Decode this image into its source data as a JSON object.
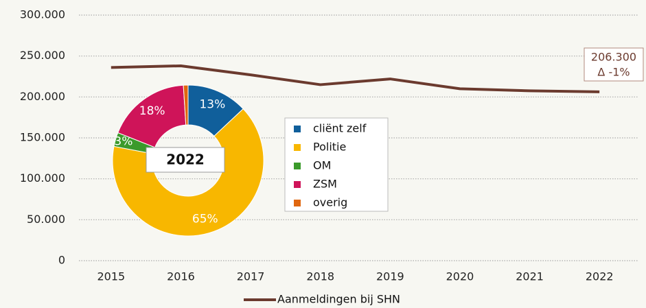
{
  "chart_data": [
    {
      "type": "line",
      "categories": [
        "2015",
        "2016",
        "2017",
        "2018",
        "2019",
        "2020",
        "2021",
        "2022"
      ],
      "series": [
        {
          "name": "Aanmeldingen bij SHN",
          "color": "#6b3a2e",
          "values": [
            236000,
            238000,
            227000,
            215000,
            222000,
            210000,
            207500,
            206300
          ],
          "value_labels": [
            null,
            null,
            null,
            null,
            null,
            null,
            null,
            "206.300"
          ]
        }
      ],
      "annotation": "Δ -1%",
      "ylim": [
        0,
        300000
      ],
      "yticks": [
        0,
        {
          "value": 50000,
          "label": "50.000"
        },
        {
          "value": 100000,
          "label": "100.000"
        },
        {
          "value": 150000,
          "label": "150.000"
        },
        {
          "value": 200000,
          "label": "200.000"
        },
        {
          "value": 250000,
          "label": "250.000"
        },
        {
          "value": 300000,
          "label": "300.000"
        }
      ],
      "grid": true,
      "legend": "bottom"
    },
    {
      "type": "donut",
      "title": "2022",
      "categories": [
        "cliënt zelf",
        "Politie",
        "OM",
        "ZSM",
        "overig"
      ],
      "values": [
        13,
        65,
        3,
        18,
        1
      ],
      "value_labels": [
        "13%",
        "65%",
        "3%",
        "18%",
        null
      ],
      "colors": [
        "#105f9b",
        "#f8b700",
        "#3b9a2b",
        "#cf1459",
        "#e0670f"
      ],
      "legend": "right"
    }
  ]
}
